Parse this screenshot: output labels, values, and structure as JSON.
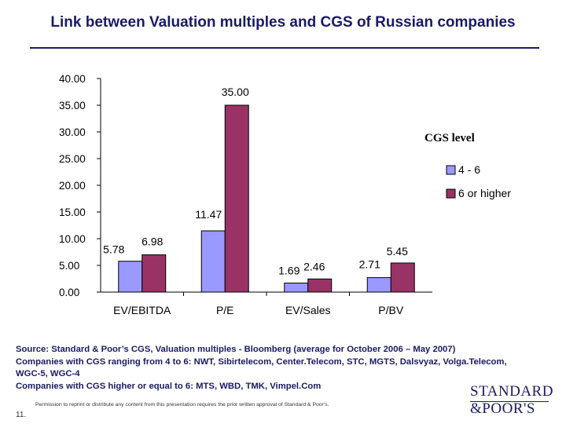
{
  "page": {
    "title": "Link between Valuation multiples and CGS of Russian companies",
    "notes": [
      "Source: Standard & Poor’s CGS, Valuation multiples - Bloomberg (average for October 2006 – May 2007)",
      "Companies with CGS ranging from 4 to 6: NWT, Sibirtelecom, Center.Telecom, STC, MGTS,  Dalsvyaz, Volga.Telecom,",
      "WGC-5, WGC-4",
      "Companies with CGS higher or equal to 6: MTS, WBD, TMK, Vimpel.Com"
    ],
    "page_number": "11.",
    "permission": "Permission to reprint or distribute any content from this presentation requires the prior written approval of Standard & Poor's.",
    "logo": {
      "line1": "STANDARD",
      "line2": "&POOR'S"
    }
  },
  "chart_data": {
    "type": "bar",
    "title": "",
    "xlabel": "",
    "ylabel": "",
    "ylim": [
      0,
      40
    ],
    "yticks": [
      0,
      5,
      10,
      15,
      20,
      25,
      30,
      35,
      40
    ],
    "ytick_labels": [
      "0.00",
      "5.00",
      "10.00",
      "15.00",
      "20.00",
      "25.00",
      "30.00",
      "35.00",
      "40.00"
    ],
    "categories": [
      "EV/EBITDA",
      "P/E",
      "EV/Sales",
      "P/BV"
    ],
    "legend_title": "CGS level",
    "legend_position": "right",
    "series": [
      {
        "name": "4 - 6",
        "color": "#9999ff",
        "values": [
          5.78,
          11.47,
          1.69,
          2.71
        ],
        "labels": [
          "5.78",
          "11.47",
          "1.69",
          "2.71"
        ]
      },
      {
        "name": "6 or higher",
        "color": "#993366",
        "values": [
          6.98,
          35.0,
          2.46,
          5.45
        ],
        "labels": [
          "6.98",
          "35.00",
          "2.46",
          "5.45"
        ]
      }
    ]
  }
}
